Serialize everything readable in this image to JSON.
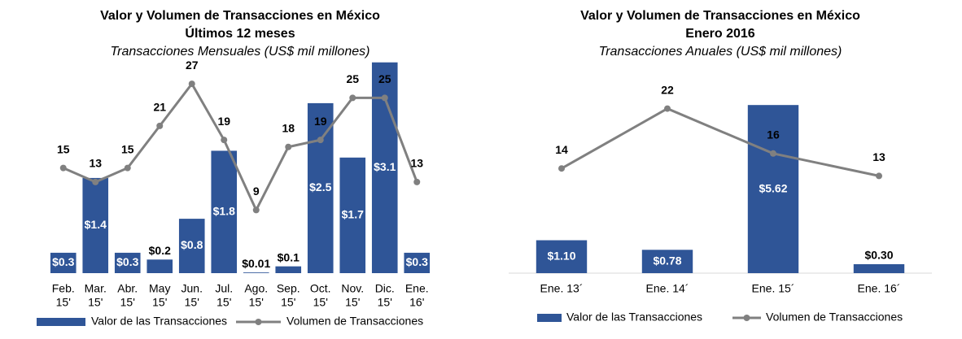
{
  "chart_data": [
    {
      "type": "combo",
      "title": [
        "Valor y Volumen de Transacciones en México",
        "Últimos 12 meses"
      ],
      "subtitle": "Transacciones Mensuales (US$ mil millones)",
      "categories": [
        [
          "Feb.",
          "15'"
        ],
        [
          "Mar.",
          "15'"
        ],
        [
          "Abr.",
          "15'"
        ],
        [
          "May",
          "15'"
        ],
        [
          "Jun.",
          "15'"
        ],
        [
          "Jul.",
          "15'"
        ],
        [
          "Ago.",
          "15'"
        ],
        [
          "Sep.",
          "15'"
        ],
        [
          "Oct.",
          "15'"
        ],
        [
          "Nov.",
          "15'"
        ],
        [
          "Dic.",
          "15'"
        ],
        [
          "Ene.",
          "16'"
        ]
      ],
      "ylim": [
        0,
        3.3
      ],
      "y2lim": [
        0,
        32
      ],
      "series": [
        {
          "name": "Valor de las Transacciones",
          "type": "bar",
          "color": "#2f5597",
          "values": [
            0.3,
            1.4,
            0.3,
            0.2,
            0.8,
            1.8,
            0.01,
            0.1,
            2.5,
            1.7,
            3.1,
            0.3
          ],
          "value_labels": [
            "$0.3",
            "$1.4",
            "$0.3",
            "$0.2",
            "$0.8",
            "$1.8",
            "$0.01",
            "$0.1",
            "$2.5",
            "$1.7",
            "$3.1",
            "$0.3"
          ]
        },
        {
          "name": "Volumen de Transacciones",
          "type": "line",
          "axis": "y2",
          "color": "#808080",
          "values": [
            15,
            13,
            15,
            21,
            27,
            19,
            9,
            18,
            19,
            25,
            25,
            13
          ]
        }
      ]
    },
    {
      "type": "combo",
      "title": [
        "Valor y Volumen de Transacciones en México",
        "Enero 2016"
      ],
      "subtitle": "Transacciones Anuales (US$ mil millones)",
      "categories": [
        [
          "Ene. 13´"
        ],
        [
          "Ene. 14´"
        ],
        [
          "Ene. 15´"
        ],
        [
          "Ene. 16´"
        ]
      ],
      "ylim": [
        0,
        7.5
      ],
      "y2lim": [
        0,
        30
      ],
      "baseline": true,
      "series": [
        {
          "name": "Valor de las Transacciones",
          "type": "bar",
          "color": "#2f5597",
          "values": [
            1.1,
            0.78,
            5.62,
            0.3
          ],
          "value_labels": [
            "$1.10",
            "$0.78",
            "$5.62",
            "$0.30"
          ]
        },
        {
          "name": "Volumen de Transacciones",
          "type": "line",
          "axis": "y2",
          "color": "#808080",
          "values": [
            14,
            22,
            16,
            13
          ]
        }
      ]
    }
  ]
}
